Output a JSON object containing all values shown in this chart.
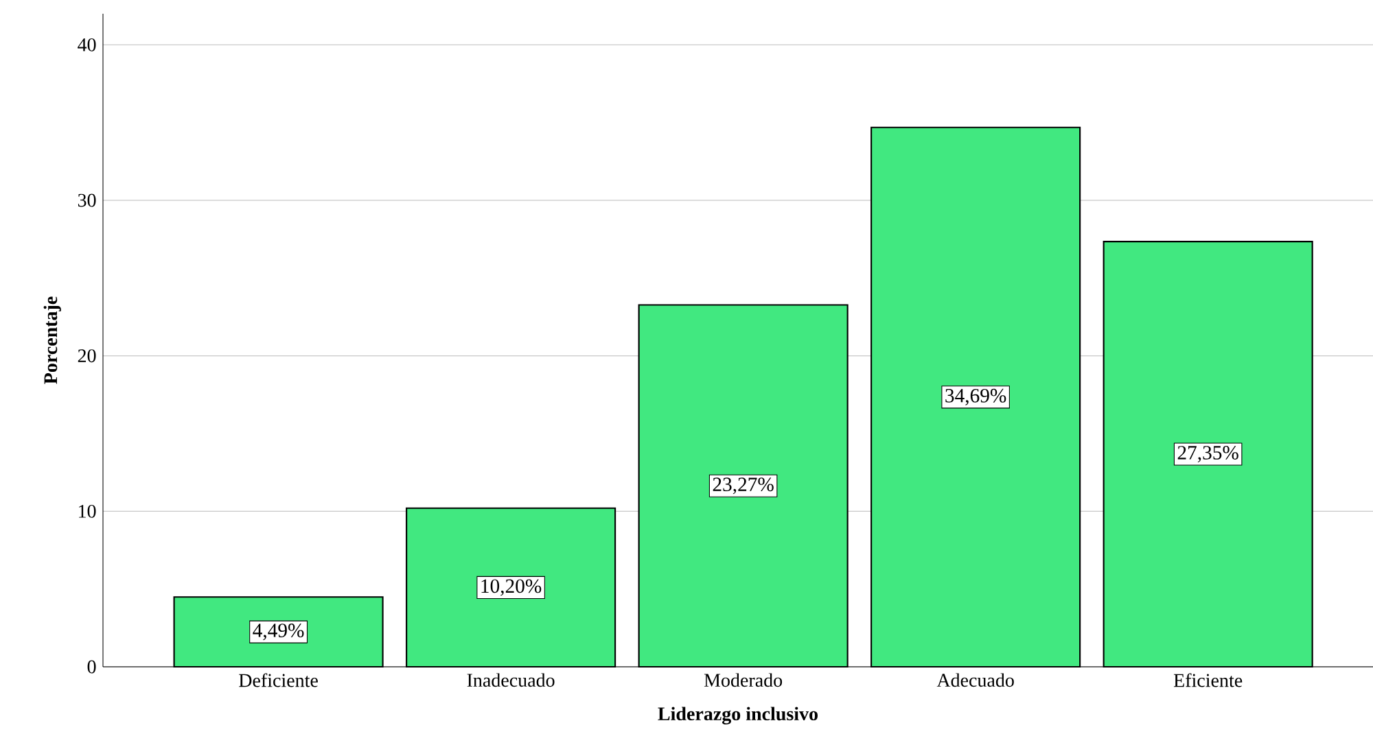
{
  "chart_data": {
    "type": "bar",
    "categories": [
      "Deficiente",
      "Inadecuado",
      "Moderado",
      "Adecuado",
      "Eficiente"
    ],
    "values": [
      4.49,
      10.2,
      23.27,
      34.69,
      27.35
    ],
    "value_labels": [
      "4,49%",
      "10,20%",
      "23,27%",
      "34,69%",
      "27,35%"
    ],
    "color": "#41e880",
    "xlabel": "Liderazgo inclusivo",
    "ylabel": "Porcentaje",
    "ylim": [
      0,
      42
    ],
    "yticks": [
      0,
      10,
      20,
      30,
      40
    ],
    "grid": "y"
  }
}
